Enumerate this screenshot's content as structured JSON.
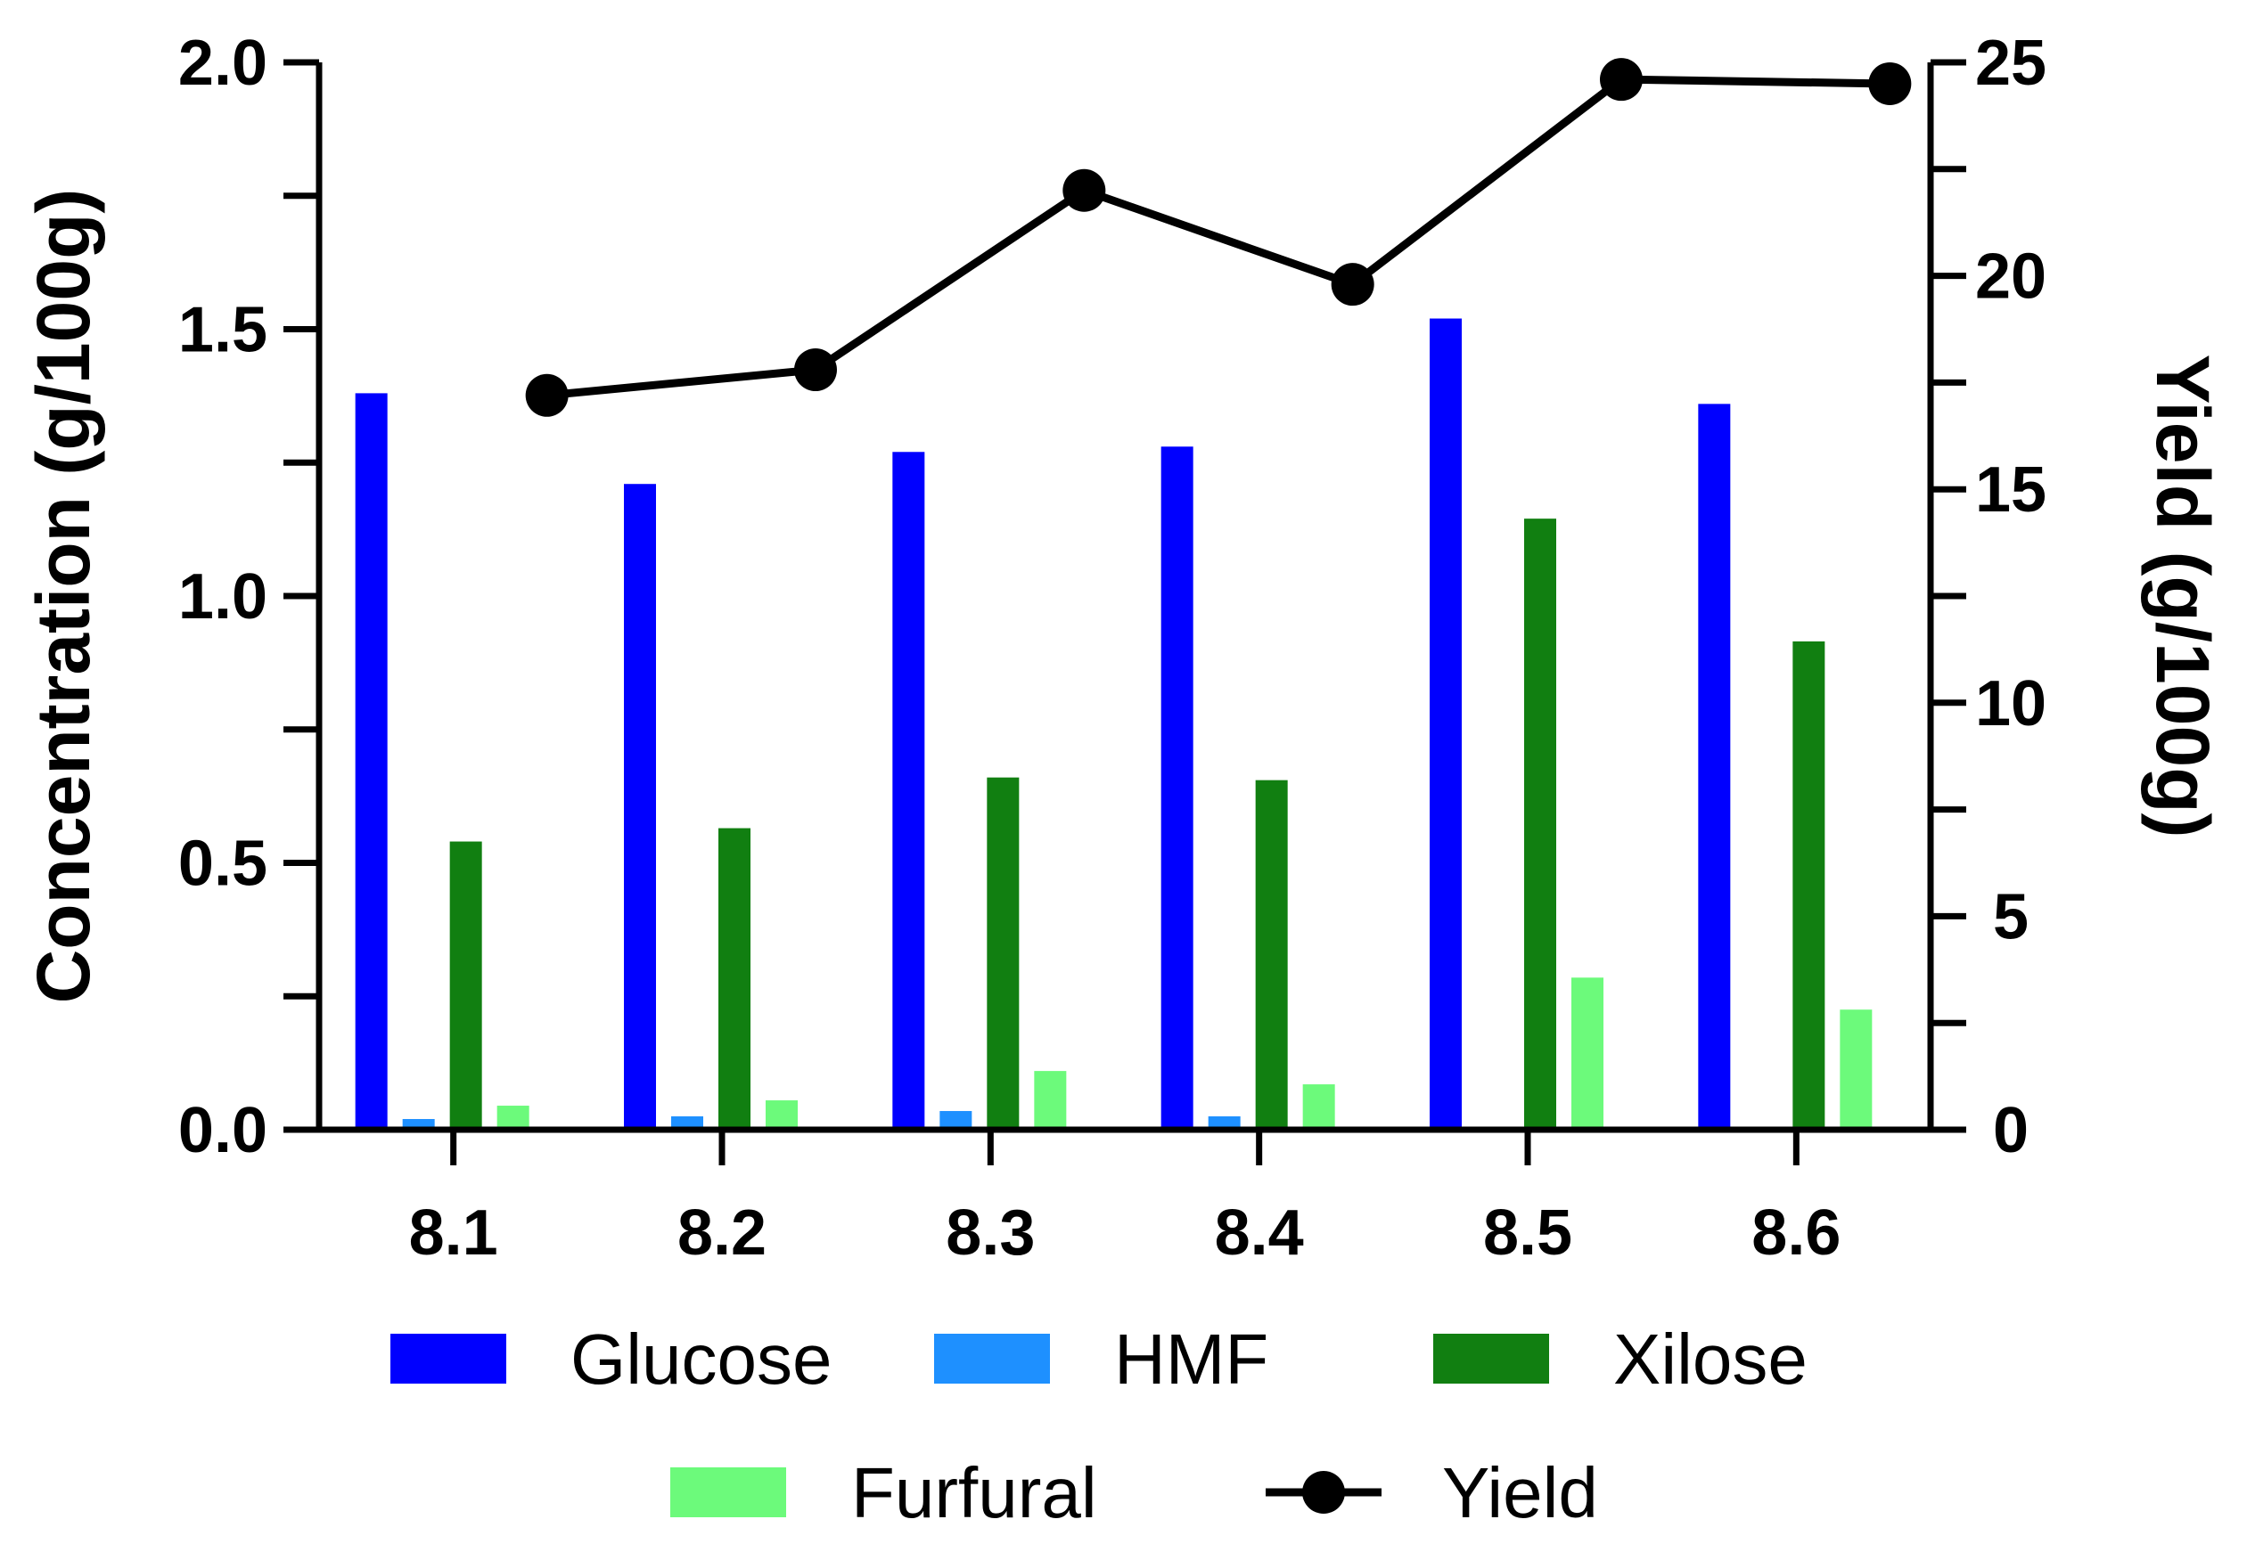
{
  "chart_data": {
    "type": "bar",
    "categories": [
      "8.1",
      "8.2",
      "8.3",
      "8.4",
      "8.5",
      "8.6"
    ],
    "series": [
      {
        "name": "Glucose",
        "kind": "bar",
        "axis": "left",
        "color": "#0000FF",
        "values": [
          1.38,
          1.21,
          1.27,
          1.28,
          1.52,
          1.36
        ]
      },
      {
        "name": "HMF",
        "kind": "bar",
        "axis": "left",
        "color": "#1E90FF",
        "values": [
          0.02,
          0.025,
          0.035,
          0.025,
          0.0,
          0.0
        ]
      },
      {
        "name": "Xilose",
        "kind": "bar",
        "axis": "left",
        "color": "#117F11",
        "values": [
          0.54,
          0.565,
          0.66,
          0.655,
          1.145,
          0.915
        ]
      },
      {
        "name": "Furfural",
        "kind": "bar",
        "axis": "left",
        "color": "#6CFA7B",
        "values": [
          0.045,
          0.055,
          0.11,
          0.085,
          0.285,
          0.225
        ]
      },
      {
        "name": "Yield",
        "kind": "line",
        "axis": "right",
        "color": "#000000",
        "values": [
          17.2,
          17.8,
          22.0,
          19.8,
          24.6,
          24.5
        ]
      }
    ],
    "ylabel": "Concentration (g/100g)",
    "y2label": "Yield (g/100g)",
    "ylim": [
      0,
      2.0
    ],
    "y2lim": [
      0,
      25
    ],
    "yticks": [
      "0.0",
      "0.5",
      "1.0",
      "1.5",
      "2.0"
    ],
    "y2ticks": [
      "0",
      "5",
      "10",
      "15",
      "20",
      "25"
    ],
    "legend": "bottom",
    "grid": false
  }
}
